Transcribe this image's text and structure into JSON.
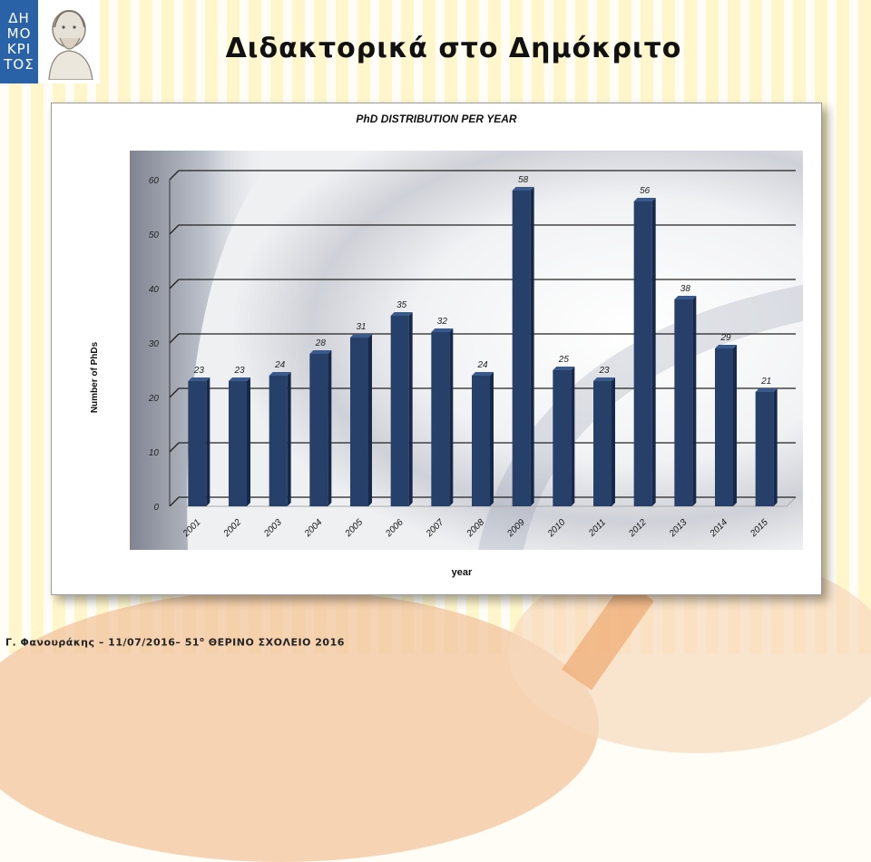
{
  "slide": {
    "title": "Διδακτορικά στο Δημόκριτο",
    "footer_left": "Γ. Φανουράκης – 11/07/2016– 51",
    "footer_sup": "ο",
    "footer_right": " ΘΕΡΙΝΟ ΣΧΟΛΕΙΟ 2016",
    "logo_lines": [
      "ΔΗ",
      "ΜΟ",
      "ΚΡΙ",
      "ΤΟΣ"
    ]
  },
  "colors": {
    "bar": "#26406a",
    "bar_top": "#3a5a8c",
    "bar_side": "#16294a",
    "logo": "#2a62a8"
  },
  "chart_data": {
    "type": "bar",
    "title": "PhD DISTRIBUTION PER YEAR",
    "xlabel": "year",
    "ylabel": "Number of PhDs",
    "ylim": [
      0,
      60
    ],
    "yticks": [
      0,
      10,
      20,
      30,
      40,
      50,
      60
    ],
    "grid": true,
    "categories": [
      "2001",
      "2002",
      "2003",
      "2004",
      "2005",
      "2006",
      "2007",
      "2008",
      "2009",
      "2010",
      "2011",
      "2012",
      "2013",
      "2014",
      "2015"
    ],
    "values": [
      23,
      23,
      24,
      28,
      31,
      35,
      32,
      24,
      58,
      25,
      23,
      56,
      38,
      29,
      21
    ]
  }
}
